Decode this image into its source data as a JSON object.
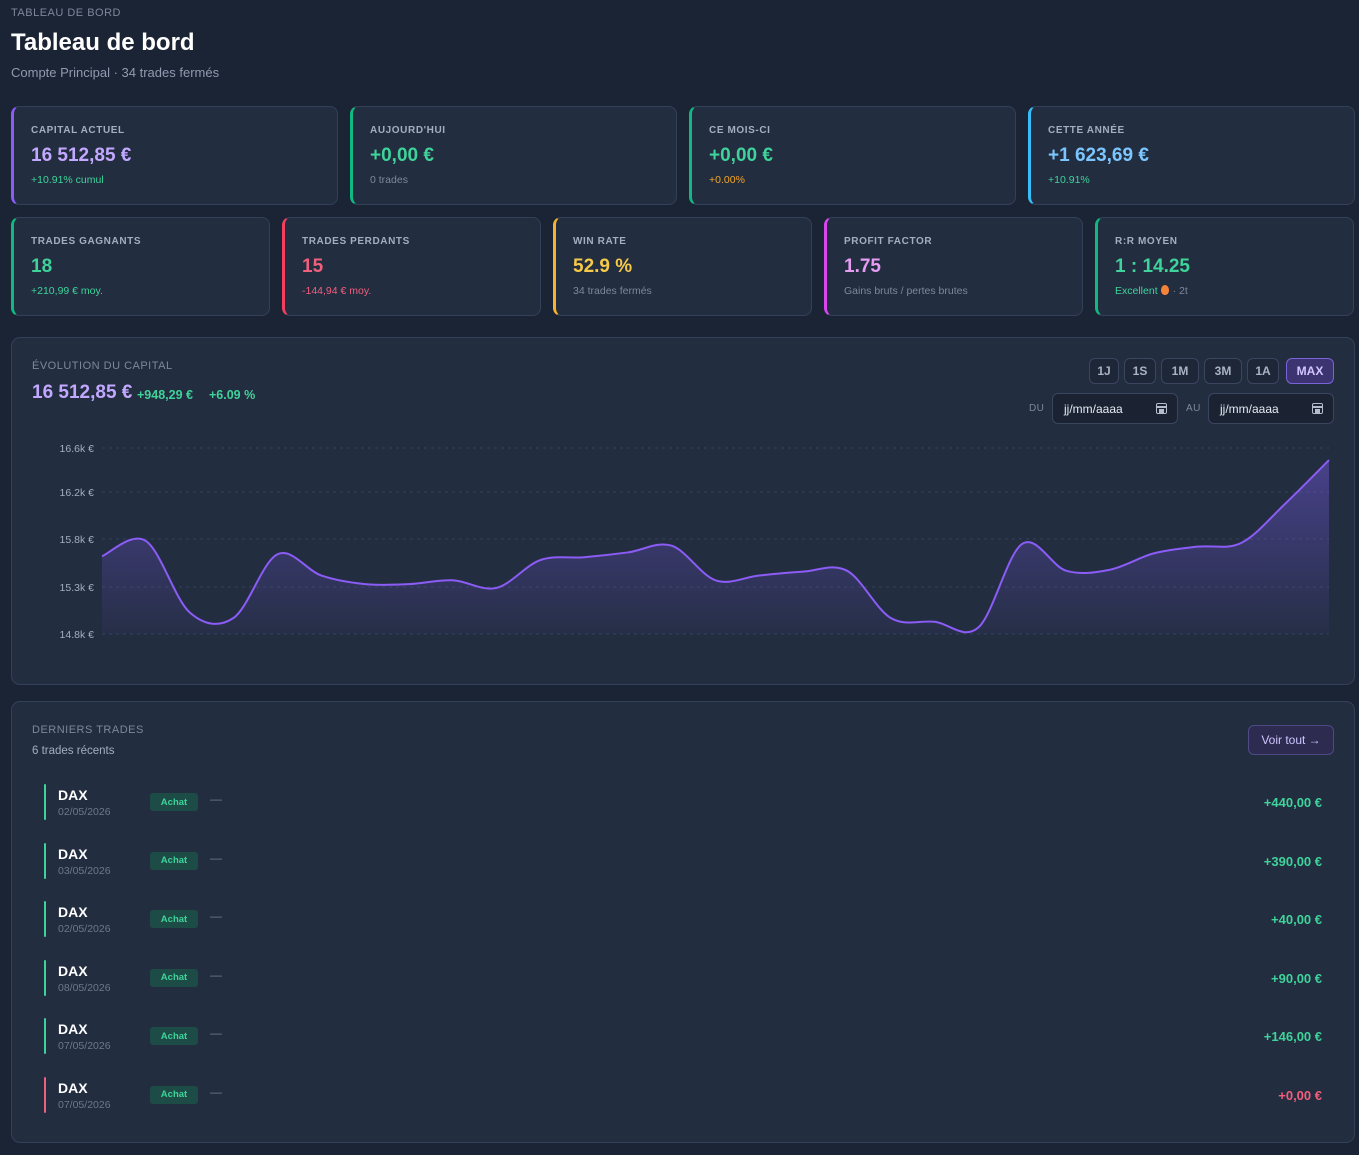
{
  "header": {
    "breadcrumb": "TABLEAU DE BORD",
    "title": "Tableau de bord",
    "subtitle": "Compte Principal · 34 trades fermés"
  },
  "kpis_top": [
    {
      "label": "CAPITAL ACTUEL",
      "value": "16 512,85 €",
      "sub": "+10.91% cumul",
      "accent": "#8b5cf6",
      "value_color": "#c2a8ff",
      "sub_color": "#3ed39a"
    },
    {
      "label": "AUJOURD'HUI",
      "value": "+0,00 €",
      "sub": "0 trades",
      "accent": "#10b981",
      "value_color": "#3ed39a",
      "sub_color": "#7c889c"
    },
    {
      "label": "CE MOIS-CI",
      "value": "+0,00 €",
      "sub": "+0.00%",
      "accent": "#10b981",
      "value_color": "#3ed39a",
      "sub_color": "#f5a524"
    },
    {
      "label": "CETTE ANNÉE",
      "value": "+1 623,69 €",
      "sub": "+10.91%",
      "accent": "#38bdf8",
      "value_color": "#7cc6ff",
      "sub_color": "#3ed39a"
    }
  ],
  "kpis_bottom": [
    {
      "label": "TRADES GAGNANTS",
      "value": "18",
      "sub": "+210,99 € moy.",
      "accent": "#10b981",
      "value_color": "#3ed39a",
      "sub_color": "#3ed39a"
    },
    {
      "label": "TRADES PERDANTS",
      "value": "15",
      "sub": "-144,94 € moy.",
      "accent": "#f43f5e",
      "value_color": "#f25f7c",
      "sub_color": "#f25f7c"
    },
    {
      "label": "WIN RATE",
      "value": "52.9 %",
      "sub": "34 trades fermés",
      "accent": "#f5b42a",
      "value_color": "#f7c948",
      "sub_color": "#7c889c"
    },
    {
      "label": "PROFIT FACTOR",
      "value": "1.75",
      "sub": "Gains bruts / pertes brutes",
      "accent": "#d946ef",
      "value_color": "#e59cf2",
      "sub_color": "#7c889c"
    },
    {
      "label": "R:R MOYEN",
      "value": "1 : 14.25",
      "sub": "Excellent",
      "sub_extra": "· 2t",
      "accent": "#10b981",
      "value_color": "#3ed39a",
      "sub_color": "#3ed39a",
      "icon": "flame-icon"
    }
  ],
  "capital_panel": {
    "label": "ÉVOLUTION DU CAPITAL",
    "value": "16 512,85 €",
    "delta": "+948,29 €",
    "delta_pct": "+6.09 %",
    "ranges": [
      "1J",
      "1S",
      "1M",
      "3M",
      "1A",
      "MAX"
    ],
    "active_range": "MAX",
    "from_label": "DU",
    "to_label": "AU",
    "from_placeholder": "jj/mm/aaaa",
    "to_placeholder": "jj/mm/aaaa"
  },
  "chart_data": {
    "type": "area",
    "title": "",
    "xlabel": "",
    "ylabel": "",
    "y_ticks": [
      "16.6k €",
      "16.2k €",
      "15.8k €",
      "15.3k €",
      "14.8k €"
    ],
    "ylim": [
      14.8,
      16.6
    ],
    "grid": true,
    "line_color": "#8b5cf6",
    "values": [
      15.62,
      15.78,
      15.03,
      14.97,
      15.64,
      15.42,
      15.33,
      15.33,
      15.37,
      15.29,
      15.58,
      15.61,
      15.66,
      15.73,
      15.37,
      15.42,
      15.46,
      15.47,
      14.97,
      14.93,
      14.87,
      15.75,
      15.47,
      15.48,
      15.65,
      15.72,
      15.76,
      16.1,
      16.49
    ]
  },
  "trades_panel": {
    "title": "DERNIERS TRADES",
    "subtitle": "6 trades récents",
    "view_all": "Voir tout →",
    "trades": [
      {
        "symbol": "DAX",
        "date": "02/05/2026",
        "side": "Achat",
        "note": "—",
        "pnl": "+440,00 €",
        "color": "#3ed39a"
      },
      {
        "symbol": "DAX",
        "date": "03/05/2026",
        "side": "Achat",
        "note": "—",
        "pnl": "+390,00 €",
        "color": "#3ed39a"
      },
      {
        "symbol": "DAX",
        "date": "02/05/2026",
        "side": "Achat",
        "note": "—",
        "pnl": "+40,00 €",
        "color": "#3ed39a"
      },
      {
        "symbol": "DAX",
        "date": "08/05/2026",
        "side": "Achat",
        "note": "—",
        "pnl": "+90,00 €",
        "color": "#3ed39a"
      },
      {
        "symbol": "DAX",
        "date": "07/05/2026",
        "side": "Achat",
        "note": "—",
        "pnl": "+146,00 €",
        "color": "#3ed39a"
      },
      {
        "symbol": "DAX",
        "date": "07/05/2026",
        "side": "Achat",
        "note": "—",
        "pnl": "+0,00 €",
        "color": "#f25f7c"
      }
    ]
  }
}
